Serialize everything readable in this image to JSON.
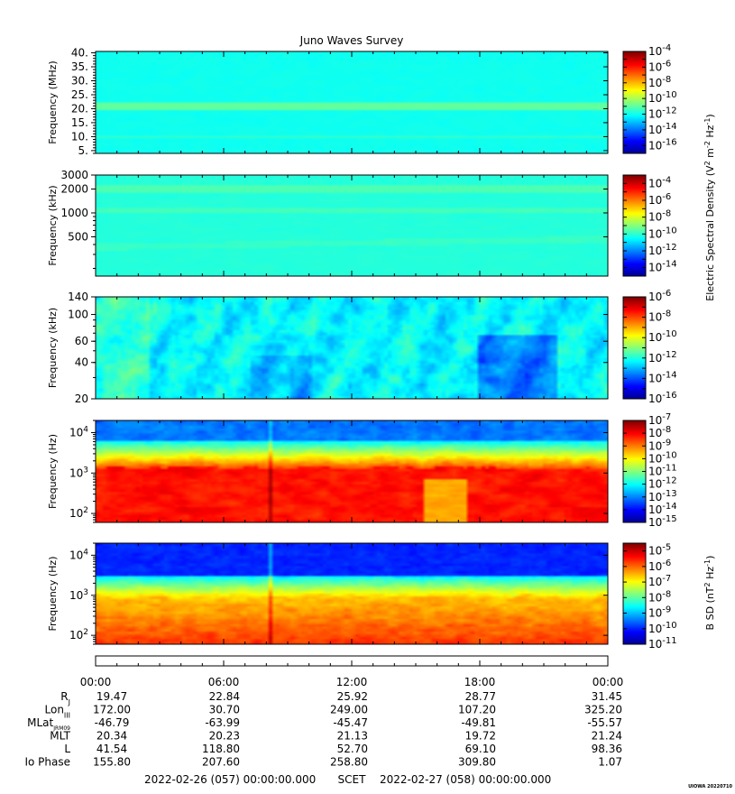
{
  "title": "Juno Waves Survey",
  "watermark": "UIOWA 20220710",
  "colors": {
    "jet": [
      "#00008f",
      "#0000ff",
      "#0080ff",
      "#00ffff",
      "#80ff80",
      "#ffff00",
      "#ff8000",
      "#ff0000",
      "#800000"
    ]
  },
  "chart_data": [
    {
      "type": "heatmap",
      "ylabel": "Frequency (MHz)",
      "yscale": "linear",
      "ylim": [
        4,
        40.5
      ],
      "yticks": [
        "40.",
        "35.",
        "30.",
        "25.",
        "20.",
        "15.",
        "10.",
        "5."
      ],
      "ytick_values": [
        40,
        35,
        30,
        25,
        20,
        15,
        10,
        5
      ],
      "colorbar": {
        "label": "",
        "min_exp": -17,
        "max_exp": -4,
        "tick_exps": [
          -4,
          -6,
          -8,
          -10,
          -12,
          -14,
          -16
        ]
      }
    },
    {
      "type": "heatmap",
      "ylabel": "Frequency (kHz)",
      "yscale": "log",
      "ylim": [
        160,
        3000
      ],
      "yticks": [
        "3000",
        "2000",
        "1000",
        "500"
      ],
      "ytick_values": [
        3000,
        2000,
        1000,
        500
      ],
      "colorbar": {
        "label": "",
        "min_exp": -15,
        "max_exp": -3,
        "tick_exps": [
          -4,
          -6,
          -8,
          -10,
          -12,
          -14
        ]
      }
    },
    {
      "type": "heatmap",
      "ylabel": "Frequency (kHz)",
      "yscale": "log",
      "ylim": [
        20,
        140
      ],
      "yticks": [
        "140",
        "100",
        "60",
        "40",
        "20"
      ],
      "ytick_values": [
        140,
        100,
        60,
        40,
        20
      ],
      "colorbar": {
        "label": "",
        "min_exp": -16,
        "max_exp": -6,
        "tick_exps": [
          -6,
          -8,
          -10,
          -12,
          -14,
          -16
        ]
      }
    },
    {
      "type": "heatmap",
      "ylabel": "Frequency (Hz)",
      "yscale": "log",
      "ylim": [
        60,
        20000
      ],
      "yticks": [
        "10",
        "10",
        "10"
      ],
      "ytick_exps": [
        "4",
        "3",
        "2"
      ],
      "ytick_values": [
        10000,
        1000,
        100
      ],
      "colorbar": {
        "label": "",
        "min_exp": -15,
        "max_exp": -7,
        "tick_exps": [
          -7,
          -8,
          -9,
          -10,
          -11,
          -12,
          -13,
          -14,
          -15
        ]
      }
    },
    {
      "type": "heatmap",
      "ylabel": "Frequency (Hz)",
      "yscale": "log",
      "ylim": [
        60,
        20000
      ],
      "yticks": [
        "10",
        "10",
        "10"
      ],
      "ytick_exps": [
        "4",
        "3",
        "2"
      ],
      "ytick_values": [
        10000,
        1000,
        100
      ],
      "colorbar": {
        "label": "",
        "min_exp": -11,
        "max_exp": -4.5,
        "tick_exps": [
          -5,
          -6,
          -7,
          -8,
          -9,
          -10,
          -11
        ]
      }
    }
  ],
  "colorbar_labels": {
    "esd": "Electric Spectral Density (V",
    "esd_rest": " m",
    "esd_hz": " Hz",
    "bsd": "B SD (nT",
    "bsd_hz": " Hz"
  },
  "time_axis": {
    "labels": [
      "00:00",
      "06:00",
      "12:00",
      "18:00",
      "00:00"
    ],
    "rows": [
      {
        "name": "R",
        "sub": "J",
        "values": [
          "19.47",
          "22.84",
          "25.92",
          "28.77",
          "31.45"
        ]
      },
      {
        "name": "Lon",
        "sub": "III",
        "values": [
          "172.00",
          "30.70",
          "249.00",
          "107.20",
          "325.20"
        ]
      },
      {
        "name": "MLat",
        "sub": "JRM09",
        "values": [
          "-46.79",
          "-63.99",
          "-45.47",
          "-49.81",
          "-55.57"
        ]
      },
      {
        "name": "MLT",
        "sub": "",
        "values": [
          "20.34",
          "20.23",
          "21.13",
          "19.72",
          "21.24"
        ]
      },
      {
        "name": "L",
        "sub": "",
        "values": [
          "41.54",
          "118.80",
          "52.70",
          "69.10",
          "98.36"
        ]
      },
      {
        "name": "Io Phase",
        "sub": "",
        "values": [
          "155.80",
          "207.60",
          "258.80",
          "309.80",
          "1.07"
        ]
      }
    ],
    "footer_start": "2022-02-26 (057) 00:00:00.000",
    "footer_mid": "SCET",
    "footer_end": "2022-02-27 (058) 00:00:00.000"
  },
  "ten": "10",
  "minus": "-"
}
